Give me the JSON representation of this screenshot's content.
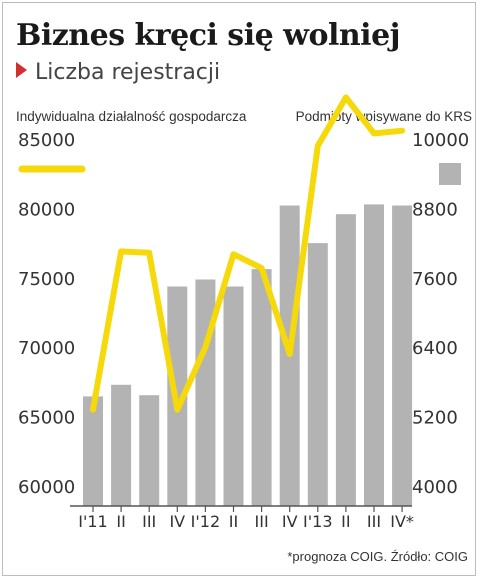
{
  "title": "Biznes kręci się wolniej",
  "subtitle": "Liczba rejestracji",
  "footer": "*prognoza COIG. Źródło: COIG",
  "colors": {
    "line": "#f5d90a",
    "bars": "#b3b3b3",
    "accent": "#d32f2f"
  },
  "chart_data": {
    "type": "bar",
    "categories": [
      "I'11",
      "II",
      "III",
      "IV",
      "I'12",
      "II",
      "III",
      "IV",
      "I'13",
      "II",
      "III",
      "IV*"
    ],
    "series": [
      {
        "name": "Indywidualna działalność gospodarcza",
        "type": "line",
        "axis": "left",
        "values": [
          65500,
          76900,
          76800,
          65500,
          70000,
          76700,
          75700,
          69500,
          84500,
          88000,
          85400,
          85600
        ]
      },
      {
        "name": "Podmioty wpisywane do KRS",
        "type": "bar",
        "axis": "right",
        "values": [
          5550,
          5750,
          5570,
          7450,
          7570,
          7450,
          7750,
          8850,
          8200,
          8700,
          8870,
          8850
        ]
      }
    ],
    "y_left": {
      "label": "Indywidualna działalność gospodarcza",
      "ticks": [
        60000,
        65000,
        70000,
        75000,
        80000,
        85000
      ],
      "range": [
        60000,
        85000
      ]
    },
    "y_right": {
      "label": "Podmioty wpisywane do KRS",
      "ticks": [
        4000,
        5200,
        6400,
        7600,
        8800,
        10000
      ],
      "range": [
        4000,
        10000
      ]
    },
    "legend": "top",
    "grid": false
  }
}
